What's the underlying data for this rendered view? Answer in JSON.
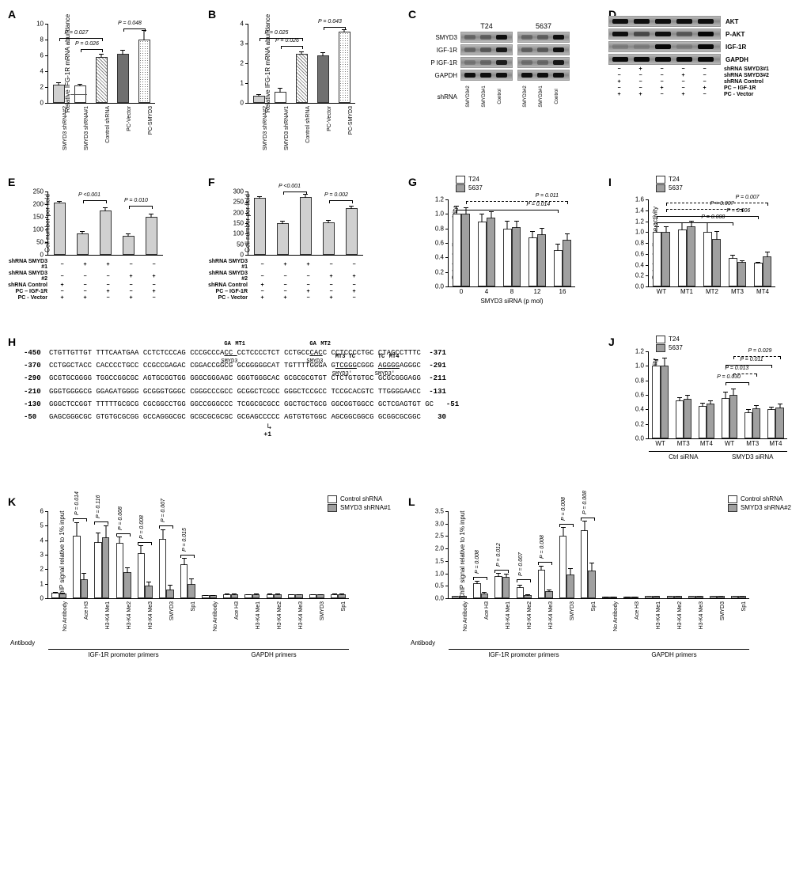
{
  "panelA": {
    "label": "A",
    "ylabel": "Relative IFG-1R mRNA abundance",
    "ymax": 10,
    "ytick_step": 2,
    "bars": [
      {
        "label": "SMYD3 shRNA#2",
        "value": 2.3,
        "err": 0.4,
        "fill": "fill-lightgray"
      },
      {
        "label": "SMYD3 shRNA#1",
        "value": 2.2,
        "err": 0.3,
        "fill": "fill-white",
        "arrow": true
      },
      {
        "label": "Control shRNA",
        "value": 5.8,
        "err": 0.5,
        "fill": "fill-hatch"
      },
      {
        "label": "PC-Vector",
        "value": 6.2,
        "err": 0.6,
        "fill": "fill-darkgray"
      },
      {
        "label": "PC-SMYD3",
        "value": 8.0,
        "err": 1.3,
        "fill": "fill-dots"
      }
    ],
    "pvals": [
      {
        "text": "P = 0.026",
        "from": 1,
        "to": 2,
        "y": 6.8
      },
      {
        "text": "P = 0.027",
        "from": 0,
        "to": 2,
        "y": 8.2
      },
      {
        "text": "P = 0.048",
        "from": 3,
        "to": 4,
        "y": 9.4
      }
    ]
  },
  "panelB": {
    "label": "B",
    "ylabel": "Relative IFG-1R mRNA abundance",
    "ymax": 4,
    "ytick_step": 1,
    "bars": [
      {
        "label": "SMYD3 shRNA#2",
        "value": 0.35,
        "err": 0.15,
        "fill": "fill-lightgray"
      },
      {
        "label": "SMYD3 shRNA#1",
        "value": 0.55,
        "err": 0.25,
        "fill": "fill-white"
      },
      {
        "label": "Control shRNA",
        "value": 2.5,
        "err": 0.15,
        "fill": "fill-hatch"
      },
      {
        "label": "PC-Vector",
        "value": 2.4,
        "err": 0.2,
        "fill": "fill-darkgray"
      },
      {
        "label": "PC-SMYD3",
        "value": 3.6,
        "err": 0.15,
        "fill": "fill-dots"
      }
    ],
    "pvals": [
      {
        "text": "P = 0.026",
        "from": 1,
        "to": 2,
        "y": 2.9
      },
      {
        "text": "P = 0.025",
        "from": 0,
        "to": 2,
        "y": 3.3
      },
      {
        "text": "P = 0.043",
        "from": 3,
        "to": 4,
        "y": 3.85
      }
    ]
  },
  "panelC": {
    "label": "C",
    "cells": [
      "T24",
      "5637"
    ],
    "rows": [
      "SMYD3",
      "IGF-1R",
      "P IGF-1R",
      "GAPDH"
    ],
    "lane_label": "shRNA",
    "lanes": [
      "SMYD3#2",
      "SMYD3#1",
      "Control"
    ],
    "band_intensity": {
      "SMYD3": [
        [
          0.3,
          0.35,
          0.9
        ],
        [
          0.3,
          0.35,
          0.9
        ]
      ],
      "IGF-1R": [
        [
          0.3,
          0.4,
          0.85
        ],
        [
          0.35,
          0.4,
          0.9
        ]
      ],
      "P IGF-1R": [
        [
          0.2,
          0.3,
          0.8
        ],
        [
          0.25,
          0.3,
          0.85
        ]
      ],
      "GAPDH": [
        [
          0.9,
          0.9,
          0.9
        ],
        [
          0.9,
          0.9,
          0.9
        ]
      ]
    }
  },
  "panelD": {
    "label": "D",
    "rows": [
      "AKT",
      "P-AKT",
      "IGF-1R",
      "GAPDH"
    ],
    "lanes": 5,
    "band_intensity": {
      "AKT": [
        0.9,
        0.9,
        0.9,
        0.9,
        0.9
      ],
      "P-AKT": [
        0.9,
        0.5,
        0.9,
        0.4,
        0.95
      ],
      "IGF-1R": [
        0.15,
        0.15,
        0.95,
        0.15,
        0.95
      ],
      "GAPDH": [
        0.95,
        0.95,
        0.95,
        0.95,
        0.95
      ]
    },
    "design": [
      {
        "label": "shRNA SMYD3#1",
        "vals": [
          "−",
          "+",
          "−",
          "−",
          "−"
        ]
      },
      {
        "label": "shRNA SMYD3#2",
        "vals": [
          "−",
          "−",
          "−",
          "+",
          "−"
        ]
      },
      {
        "label": "shRNA Control",
        "vals": [
          "+",
          "−",
          "−",
          "−",
          "−"
        ]
      },
      {
        "label": "PC – IGF-1R",
        "vals": [
          "−",
          "−",
          "+",
          "−",
          "+"
        ]
      },
      {
        "label": "PC - Vector",
        "vals": [
          "+",
          "+",
          "−",
          "+",
          "−"
        ]
      }
    ]
  },
  "panelE": {
    "label": "E",
    "ylabel": "Cell number per field",
    "ymax": 250,
    "ytick_step": 50,
    "bars": [
      {
        "value": 205,
        "err": 10
      },
      {
        "value": 85,
        "err": 12
      },
      {
        "value": 175,
        "err": 15
      },
      {
        "value": 75,
        "err": 12
      },
      {
        "value": 150,
        "err": 15
      }
    ],
    "fill": "fill-lightgray",
    "design": [
      {
        "label": "shRNA SMYD3 #1",
        "vals": [
          "−",
          "+",
          "+",
          "−",
          "−"
        ]
      },
      {
        "label": "shRNA SMYD3 #2",
        "vals": [
          "−",
          "−",
          "−",
          "+",
          "+"
        ]
      },
      {
        "label": "shRNA Control",
        "vals": [
          "+",
          "−",
          "−",
          "−",
          "−"
        ]
      },
      {
        "label": "PC – IGF-1R",
        "vals": [
          "−",
          "−",
          "+",
          "−",
          "+"
        ]
      },
      {
        "label": "PC - Vector",
        "vals": [
          "+",
          "+",
          "−",
          "+",
          "−"
        ]
      }
    ],
    "pvals": [
      {
        "text": "P <0.001",
        "from": 1,
        "to": 2,
        "y": 215
      },
      {
        "text": "P = 0.010",
        "from": 3,
        "to": 4,
        "y": 195
      }
    ]
  },
  "panelF": {
    "label": "F",
    "ylabel": "Cell number per field",
    "ymax": 300,
    "ytick_step": 50,
    "bars": [
      {
        "value": 270,
        "err": 12
      },
      {
        "value": 150,
        "err": 15
      },
      {
        "value": 275,
        "err": 18
      },
      {
        "value": 152,
        "err": 15
      },
      {
        "value": 220,
        "err": 15
      }
    ],
    "fill": "fill-lightgray",
    "design": [
      {
        "label": "shRNA SMYD3 #1",
        "vals": [
          "−",
          "+",
          "+",
          "−",
          "−"
        ]
      },
      {
        "label": "shRNA SMYD3 #2",
        "vals": [
          "−",
          "−",
          "−",
          "+",
          "+"
        ]
      },
      {
        "label": "shRNA Control",
        "vals": [
          "+",
          "−",
          "−",
          "−",
          "−"
        ]
      },
      {
        "label": "PC – IGF-1R",
        "vals": [
          "−",
          "−",
          "+",
          "−",
          "+"
        ]
      },
      {
        "label": "PC - Vector",
        "vals": [
          "+",
          "+",
          "−",
          "+",
          "−"
        ]
      }
    ],
    "pvals": [
      {
        "text": "P <0.001",
        "from": 1,
        "to": 2,
        "y": 300
      },
      {
        "text": "P = 0.002",
        "from": 3,
        "to": 4,
        "y": 260
      }
    ]
  },
  "panelG": {
    "label": "G",
    "ylabel": "Relative luciferase activity",
    "xlabel": "SMYD3 siRNA (p mol)",
    "legend": [
      {
        "name": "T24",
        "fill": "fill-white"
      },
      {
        "name": "5637",
        "fill": "fill-gray"
      }
    ],
    "ymax": 1.2,
    "ytick_step": 0.2,
    "groups": [
      "0",
      "4",
      "8",
      "12",
      "16"
    ],
    "series": [
      {
        "name": "T24",
        "fill": "fill-white",
        "values": [
          1.0,
          0.9,
          0.8,
          0.68,
          0.5
        ],
        "err": [
          0.12,
          0.12,
          0.12,
          0.1,
          0.1
        ]
      },
      {
        "name": "5637",
        "fill": "fill-gray",
        "values": [
          1.0,
          0.95,
          0.82,
          0.72,
          0.64
        ],
        "err": [
          0.1,
          0.1,
          0.1,
          0.1,
          0.1
        ]
      }
    ],
    "pvals": [
      {
        "text": "P = 0.014",
        "from_group": 0,
        "to_group": 4,
        "series": 0,
        "y": 1.06,
        "dashed": false
      },
      {
        "text": "P = 0.011",
        "from_group": 0,
        "to_group": 4,
        "series": 1,
        "y": 1.18,
        "dashed": true
      }
    ]
  },
  "panelI": {
    "label": "I",
    "ylabel": "Relative luciferase activity",
    "legend": [
      {
        "name": "T24",
        "fill": "fill-white"
      },
      {
        "name": "5637",
        "fill": "fill-gray"
      }
    ],
    "ymax": 1.6,
    "ytick_step": 0.2,
    "groups": [
      "WT",
      "MT1",
      "MT2",
      "MT3",
      "MT4"
    ],
    "series": [
      {
        "name": "T24",
        "fill": "fill-white",
        "values": [
          1.0,
          1.05,
          1.0,
          0.53,
          0.43
        ],
        "err": [
          0.12,
          0.15,
          0.2,
          0.06,
          0.04
        ]
      },
      {
        "name": "5637",
        "fill": "fill-gray",
        "values": [
          1.0,
          1.1,
          0.88,
          0.45,
          0.55
        ],
        "err": [
          0.12,
          0.12,
          0.15,
          0.05,
          0.1
        ]
      }
    ],
    "pvals": [
      {
        "text": "P = 0.008",
        "from_group": 0,
        "to_group": 3,
        "series": 0,
        "y": 1.18,
        "dashed": false
      },
      {
        "text": "P = 0.006",
        "from_group": 0,
        "to_group": 4,
        "series": 0,
        "y": 1.3,
        "dashed": false
      },
      {
        "text": "P = 0.007",
        "from_group": 0,
        "to_group": 3,
        "series": 1,
        "y": 1.42,
        "dashed": true
      },
      {
        "text": "P = 0.007",
        "from_group": 0,
        "to_group": 4,
        "series": 1,
        "y": 1.54,
        "dashed": true
      }
    ]
  },
  "panelH": {
    "label": "H",
    "rows": [
      {
        "start": -450,
        "text": "CTGTTGTTGT TTTCAATGAA CCTCTCCCAG CCCGCCCACC CCTCCCCTCT CCTGCCCACC CCTCCCCTGC CTAGCCTTTC",
        "end": -371,
        "annot": [
          {
            "pos": 41,
            "len": 3,
            "top": "GA",
            "toplabel": "MT1",
            "bottom": "SMYD3"
          },
          {
            "pos": 61,
            "len": 3,
            "top": "GA",
            "toplabel": "MT2",
            "bottom": "SMYD3"
          }
        ]
      },
      {
        "start": -370,
        "text": "CCTGGCTACC CACCCCTGCC CCGCCGAGAC CGGACCGGCG GCGGGGGCAT TGTTTTGGGA GTCGGGCGGG AGGGGAGGGC",
        "end": -291,
        "annot": [
          {
            "pos": 67,
            "len": 5,
            "top": "MT3 TC",
            "bottom": "SMYD3'"
          },
          {
            "pos": 77,
            "len": 5,
            "top": "TC",
            "toplabel": "MT4",
            "bottom": "SMYD3'"
          }
        ]
      },
      {
        "start": -290,
        "text": "GCGTGCGGGG TGGCCGGCGC AGTGCGGTGG GGGCGGGAGC GGGTGGGCAC GCGCGCGTGT CTCTGTGTGC GCGCGGGAGG",
        "end": -211
      },
      {
        "start": -210,
        "text": "GGGTGGGGCG GGAGATGGGG GCGGGTGGGC CGGGCCCGCC GCGGCTCGCC GGGCTCCGCC TCCGCACGTC TTGGGGAACC",
        "end": -131
      },
      {
        "start": -130,
        "text": "GGGCTCCGGT TTTTTGCGCG CGCGGCCTGG GGCCGGGCCC TCGGCGCGCC GGCTGCTGCG GGCGGTGGCC GCTCGAGTGT GC",
        "end": -51
      },
      {
        "start": -50,
        "text": "GAGCGGGCGC GTGTGCGCGG GCCAGGGCGC GCGCGCGCGC GCGAGCCCCC AGTGTGTGGC AGCGGCGGCG GCGGCGCGGC",
        "end": 30,
        "tss": 51
      }
    ]
  },
  "panelJ": {
    "label": "J",
    "ylabel": "Relative luciferase activity",
    "legend": [
      {
        "name": "T24",
        "fill": "fill-white"
      },
      {
        "name": "5637",
        "fill": "fill-gray"
      }
    ],
    "ymax": 1.2,
    "ytick_step": 0.2,
    "section_labels": [
      "Ctrl siRNA",
      "SMYD3 siRNA"
    ],
    "groups": [
      "WT",
      "MT3",
      "MT4",
      "WT",
      "MT3",
      "MT4"
    ],
    "series": [
      {
        "name": "T24",
        "fill": "fill-white",
        "values": [
          1.0,
          0.52,
          0.45,
          0.56,
          0.36,
          0.4
        ],
        "err": [
          0.1,
          0.06,
          0.05,
          0.1,
          0.05,
          0.05
        ]
      },
      {
        "name": "5637",
        "fill": "fill-gray",
        "values": [
          1.0,
          0.55,
          0.48,
          0.6,
          0.42,
          0.43
        ],
        "err": [
          0.12,
          0.06,
          0.06,
          0.1,
          0.05,
          0.06
        ]
      }
    ],
    "pvals": [
      {
        "text": "P = 0.030",
        "from_group": 3,
        "to_group": 4,
        "series": 0,
        "y": 0.78,
        "dashed": false
      },
      {
        "text": "P = 0.013",
        "from_group": 3,
        "to_group": 4,
        "series": 1,
        "y": 0.9,
        "dashed": true
      },
      {
        "text": "P = 0.011",
        "from_group": 3,
        "to_group": 5,
        "series": 0,
        "y": 1.02,
        "dashed": false
      },
      {
        "text": "P = 0.029",
        "from_group": 3,
        "to_group": 5,
        "series": 1,
        "y": 1.14,
        "dashed": true
      }
    ]
  },
  "panelK": {
    "label": "K",
    "ylabel": "ChIP signal relative to 1% input",
    "ymax": 6.0,
    "ytick_step": 1.0,
    "antibody_label": "Antibody",
    "section_labels": [
      "IGF-1R promoter primers",
      "GAPDH primers"
    ],
    "legend": [
      {
        "name": "Control shRNA",
        "fill": "fill-white"
      },
      {
        "name": "SMYD3 shRNA#1",
        "fill": "fill-gray"
      }
    ],
    "groups": [
      "No Antibody",
      "Ace H3",
      "H3-K4 Me1",
      "H3-K4 Me2",
      "H3-K4 Me3",
      "SMYD3",
      "Sp1",
      "No Antibody",
      "Ace H3",
      "H3-K4 Me1",
      "H3-K4 Me2",
      "H3-K4 Me3",
      "SMYD3",
      "Sp1"
    ],
    "series": [
      {
        "name": "Control shRNA",
        "fill": "fill-white",
        "values": [
          0.4,
          4.3,
          3.9,
          3.8,
          3.1,
          4.1,
          2.35,
          0.2,
          0.3,
          0.25,
          0.3,
          0.25,
          0.25,
          0.3
        ],
        "err": [
          0.1,
          1.0,
          0.7,
          0.5,
          0.6,
          0.7,
          0.5,
          0.05,
          0.1,
          0.08,
          0.08,
          0.06,
          0.06,
          0.08
        ]
      },
      {
        "name": "SMYD3 shRNA#1",
        "fill": "fill-gray",
        "values": [
          0.35,
          1.3,
          4.2,
          1.8,
          0.9,
          0.6,
          1.0,
          0.2,
          0.3,
          0.28,
          0.3,
          0.25,
          0.25,
          0.3
        ],
        "err": [
          0.1,
          0.5,
          0.9,
          0.4,
          0.3,
          0.4,
          0.4,
          0.05,
          0.1,
          0.08,
          0.08,
          0.06,
          0.06,
          0.08
        ]
      }
    ],
    "pvals": [
      {
        "text": "P = 0.014",
        "group": 1,
        "y": 5.5
      },
      {
        "text": "P = 0.116",
        "group": 2,
        "y": 5.3
      },
      {
        "text": "P = 0.008",
        "group": 3,
        "y": 4.5
      },
      {
        "text": "P = 0.008",
        "group": 4,
        "y": 3.9
      },
      {
        "text": "P = 0.007",
        "group": 5,
        "y": 5.0
      },
      {
        "text": "P = 0.015",
        "group": 6,
        "y": 3.0
      }
    ]
  },
  "panelL": {
    "label": "L",
    "ylabel": "ChIP signal relative to 1% input",
    "ymax": 3.5,
    "ytick_step": 0.5,
    "antibody_label": "Antibody",
    "section_labels": [
      "IGF-1R promoter primers",
      "GAPDH primers"
    ],
    "legend": [
      {
        "name": "Control shRNA",
        "fill": "fill-white"
      },
      {
        "name": "SMYD3 shRNA#2",
        "fill": "fill-gray"
      }
    ],
    "groups": [
      "No Antibody",
      "Ace H3",
      "H3-K4 Me1",
      "H3-K4 Me2",
      "H3-K4 Me3",
      "SMYD3",
      "Sp1",
      "No Antibody",
      "Ace H3",
      "H3-K4 Me1",
      "H3-K4 Me2",
      "H3-K4 Me3",
      "SMYD3",
      "Sp1"
    ],
    "series": [
      {
        "name": "Control shRNA",
        "fill": "fill-white",
        "values": [
          0.1,
          0.6,
          0.9,
          0.45,
          1.15,
          2.5,
          2.75,
          0.05,
          0.08,
          0.1,
          0.1,
          0.1,
          0.1,
          0.1
        ],
        "err": [
          0.03,
          0.12,
          0.15,
          0.12,
          0.2,
          0.4,
          0.4,
          0.02,
          0.03,
          0.03,
          0.03,
          0.03,
          0.03,
          0.03
        ]
      },
      {
        "name": "SMYD3 shRNA#2",
        "fill": "fill-gray",
        "values": [
          0.1,
          0.2,
          0.85,
          0.12,
          0.28,
          0.95,
          1.1,
          0.05,
          0.08,
          0.1,
          0.1,
          0.1,
          0.1,
          0.1
        ],
        "err": [
          0.03,
          0.08,
          0.18,
          0.06,
          0.1,
          0.3,
          0.35,
          0.02,
          0.03,
          0.03,
          0.03,
          0.03,
          0.03,
          0.03
        ]
      }
    ],
    "pvals": [
      {
        "text": "P = 0.008",
        "group": 1,
        "y": 0.85
      },
      {
        "text": "P = 0.012",
        "group": 2,
        "y": 1.15
      },
      {
        "text": "P = 0.007",
        "group": 3,
        "y": 0.75
      },
      {
        "text": "P = 0.008",
        "group": 4,
        "y": 1.45
      },
      {
        "text": "P = 0.008",
        "group": 5,
        "y": 3.0
      },
      {
        "text": "P = 0.008",
        "group": 6,
        "y": 3.25
      }
    ]
  }
}
